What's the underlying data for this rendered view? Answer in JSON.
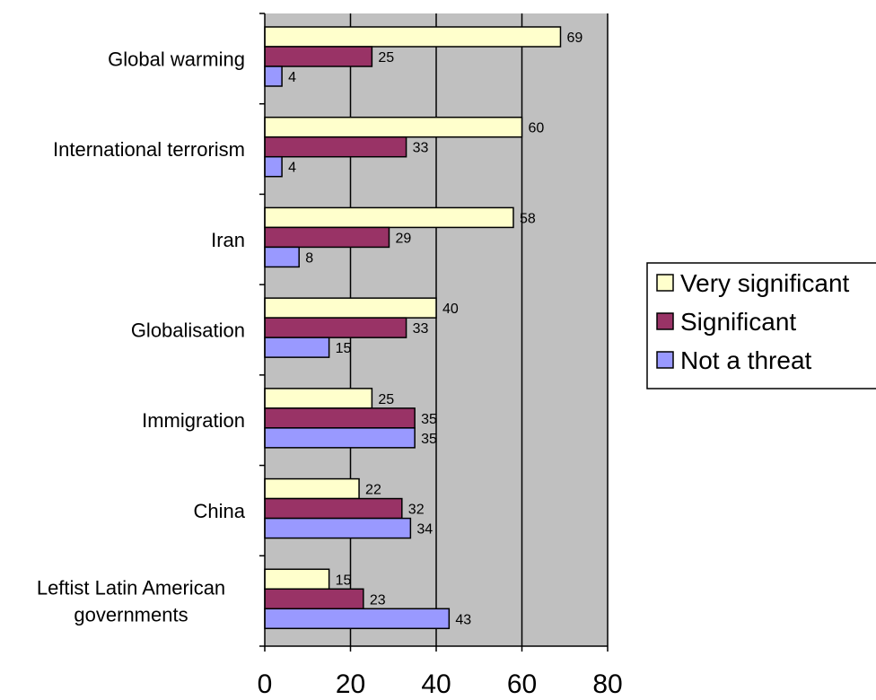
{
  "chart_data": {
    "type": "bar",
    "orientation": "horizontal",
    "categories": [
      [
        "Global warming"
      ],
      [
        "International terrorism"
      ],
      [
        "Iran"
      ],
      [
        "Globalisation"
      ],
      [
        "Immigration"
      ],
      [
        "China"
      ],
      [
        "Leftist Latin American",
        "governments"
      ]
    ],
    "series": [
      {
        "name": "Very significant",
        "color": "#ffffcc",
        "values": [
          69,
          60,
          58,
          40,
          25,
          22,
          15
        ]
      },
      {
        "name": "Significant",
        "color": "#993366",
        "values": [
          25,
          33,
          29,
          33,
          35,
          32,
          23
        ]
      },
      {
        "name": "Not a threat",
        "color": "#9999ff",
        "values": [
          4,
          4,
          8,
          15,
          35,
          34,
          43
        ]
      }
    ],
    "xlim": [
      0,
      80
    ],
    "xticks": [
      0,
      20,
      40,
      60,
      80
    ],
    "plot_background": "#c0c0c0",
    "grid": true,
    "legend_position": "right"
  }
}
